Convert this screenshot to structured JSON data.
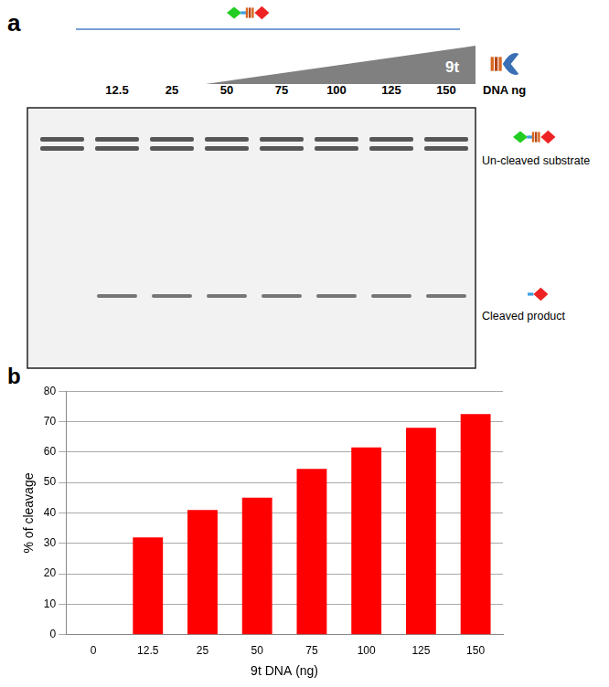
{
  "panel_a": {
    "label": "a",
    "enzyme": "9t",
    "lanes": [
      "12.5",
      "25",
      "50",
      "75",
      "100",
      "125",
      "150"
    ],
    "lane_unit": "DNA ng",
    "bands": [
      "Un-cleaved substrate",
      "Cleaved product"
    ]
  },
  "panel_b": {
    "label": "b"
  },
  "chart_data": {
    "type": "bar",
    "x_label": "9t DNA (ng)",
    "y_label": "% of cleavage",
    "categories": [
      "0",
      "12.5",
      "25",
      "50",
      "75",
      "100",
      "125",
      "150"
    ],
    "values": [
      0,
      32,
      41,
      45,
      54.5,
      61.5,
      68,
      72.5
    ],
    "color": "#ff0000",
    "ylim": [
      0,
      80
    ],
    "yticks": [
      0,
      10,
      20,
      30,
      40,
      50,
      60,
      70,
      80
    ],
    "grid": true
  }
}
